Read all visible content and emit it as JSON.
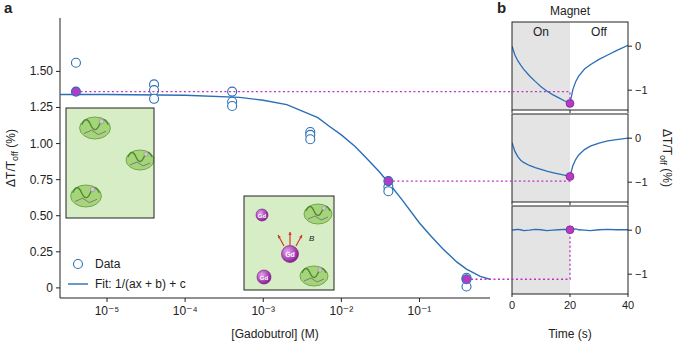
{
  "chart_data": [
    {
      "type": "scatter",
      "panel": "a",
      "x_label": "[Gadobutrol] (M)",
      "y_label": "ΔT/Toff (%)",
      "log": "x",
      "xlim": [
        2.5e-06,
        0.8
      ],
      "ylim": [
        -0.07,
        1.87
      ],
      "xticks": [
        {
          "value": 1e-05,
          "label": "10⁻⁵"
        },
        {
          "value": 0.0001,
          "label": "10⁻⁴"
        },
        {
          "value": 0.001,
          "label": "10⁻³"
        },
        {
          "value": 0.01,
          "label": "10⁻²"
        },
        {
          "value": 0.1,
          "label": "10⁻¹"
        }
      ],
      "yticks": [
        0,
        0.25,
        {
          "value": 0.5,
          "label": "0.50"
        },
        0.75,
        {
          "value": 1,
          "label": "1.00"
        },
        1.25,
        {
          "value": 1.5,
          "label": "1.50"
        }
      ],
      "grid": false,
      "legend": "lower left",
      "annotations": [
        "Gd",
        "Gd",
        "Gd",
        "B"
      ],
      "series": [
        {
          "name": "Data",
          "type": "scatter",
          "marker": "circle",
          "color": "#2a6fb5",
          "colors": [
            "#ffffff",
            "#b43cc4",
            "#ffffff",
            "#ffffff",
            "#ffffff",
            "#ffffff",
            "#ffffff",
            "#ffffff",
            "#ffffff",
            "#ffffff",
            "#ffffff",
            "#b43cc4",
            "#ffffff",
            "#ffffff",
            "#ffffff",
            "#b43cc4",
            "#ffffff"
          ],
          "x": [
            4e-06,
            4e-06,
            4e-05,
            4e-05,
            4e-05,
            0.0004,
            0.0004,
            0.0004,
            0.004,
            0.004,
            0.004,
            0.04,
            0.04,
            0.04,
            0.4,
            0.4,
            0.4
          ],
          "values": [
            1.56,
            1.36,
            1.41,
            1.37,
            1.31,
            1.36,
            1.29,
            1.26,
            1.08,
            1.06,
            1.03,
            0.74,
            0.7,
            0.67,
            0.07,
            0.06,
            0.01
          ]
        },
        {
          "name": "Fit: 1/(ax + b) + c",
          "type": "line",
          "line_style": "solid",
          "color": "#2a6fb5",
          "x": [
            2.5e-06,
            1e-05,
            0.0001,
            0.0005,
            0.001,
            0.002,
            0.003,
            0.005,
            0.007,
            0.01,
            0.015,
            0.02,
            0.03,
            0.04,
            0.06,
            0.1,
            0.14,
            0.2,
            0.3,
            0.4,
            0.6,
            0.8
          ],
          "values": [
            1.34,
            1.34,
            1.335,
            1.32,
            1.3,
            1.27,
            1.23,
            1.18,
            1.12,
            1.06,
            0.98,
            0.91,
            0.81,
            0.73,
            0.61,
            0.45,
            0.36,
            0.27,
            0.18,
            0.13,
            0.08,
            0.06
          ]
        }
      ]
    },
    {
      "type": "line",
      "panel": "b",
      "title": "Magnet",
      "annotations": [
        "On",
        "Off"
      ],
      "magnet_on": [
        0,
        20
      ],
      "xlim": [
        0,
        40
      ],
      "ylim": [
        -1.45,
        0.55
      ],
      "xticks": [
        0,
        20,
        40
      ],
      "yticks": [
        0,
        {
          "value": -1,
          "label": "−1"
        }
      ],
      "tick_labels": "y",
      "grid": false,
      "series": [
        {
          "color": "#2a6fb5",
          "x": [
            0,
            1,
            2,
            3,
            4,
            6,
            8,
            10,
            12,
            14,
            16,
            18,
            20,
            21,
            22,
            23,
            25,
            27,
            30,
            33,
            36,
            40
          ],
          "values": [
            0,
            -0.2,
            -0.33,
            -0.43,
            -0.52,
            -0.67,
            -0.8,
            -0.92,
            -1.02,
            -1.1,
            -1.17,
            -1.24,
            -1.3,
            -0.98,
            -0.8,
            -0.68,
            -0.52,
            -0.42,
            -0.3,
            -0.2,
            -0.1,
            0.02
          ]
        }
      ]
    },
    {
      "type": "line",
      "y_label": "ΔT/Toff (%)",
      "magnet_on": [
        0,
        20
      ],
      "xlim": [
        0,
        40
      ],
      "ylim": [
        -1.45,
        0.55
      ],
      "xticks": [
        0,
        20,
        40
      ],
      "yticks": [
        0,
        {
          "value": -1,
          "label": "−1"
        }
      ],
      "tick_labels": "y",
      "grid": false,
      "series": [
        {
          "color": "#2a6fb5",
          "x": [
            0,
            1,
            2,
            3,
            4,
            6,
            8,
            10,
            12,
            14,
            16,
            18,
            20,
            21,
            22,
            23,
            25,
            27,
            30,
            33,
            36,
            40
          ],
          "values": [
            -0.1,
            -0.3,
            -0.42,
            -0.5,
            -0.55,
            -0.62,
            -0.67,
            -0.71,
            -0.75,
            -0.78,
            -0.81,
            -0.84,
            -0.87,
            -0.62,
            -0.48,
            -0.38,
            -0.26,
            -0.18,
            -0.11,
            -0.06,
            -0.03,
            0
          ]
        }
      ]
    },
    {
      "type": "line",
      "x_label": "Time (s)",
      "magnet_on": [
        0,
        20
      ],
      "xlim": [
        0,
        40
      ],
      "ylim": [
        -1.45,
        0.55
      ],
      "xticks": [
        0,
        20,
        40
      ],
      "yticks": [
        0,
        {
          "value": -1,
          "label": "−1"
        }
      ],
      "grid": false,
      "series": [
        {
          "color": "#2a6fb5",
          "x": [
            0,
            1,
            2,
            3,
            4,
            6,
            8,
            10,
            12,
            14,
            16,
            18,
            20,
            21,
            22,
            23,
            25,
            27,
            30,
            33,
            36,
            40
          ],
          "values": [
            0,
            0.01,
            0.02,
            0.01,
            -0.01,
            0,
            0.02,
            0.01,
            -0.01,
            0,
            0.01,
            0.02,
            0.01,
            0.02,
            0.03,
            0.01,
            0,
            -0.01,
            0.01,
            0.02,
            0.01,
            0.01
          ]
        }
      ]
    }
  ]
}
